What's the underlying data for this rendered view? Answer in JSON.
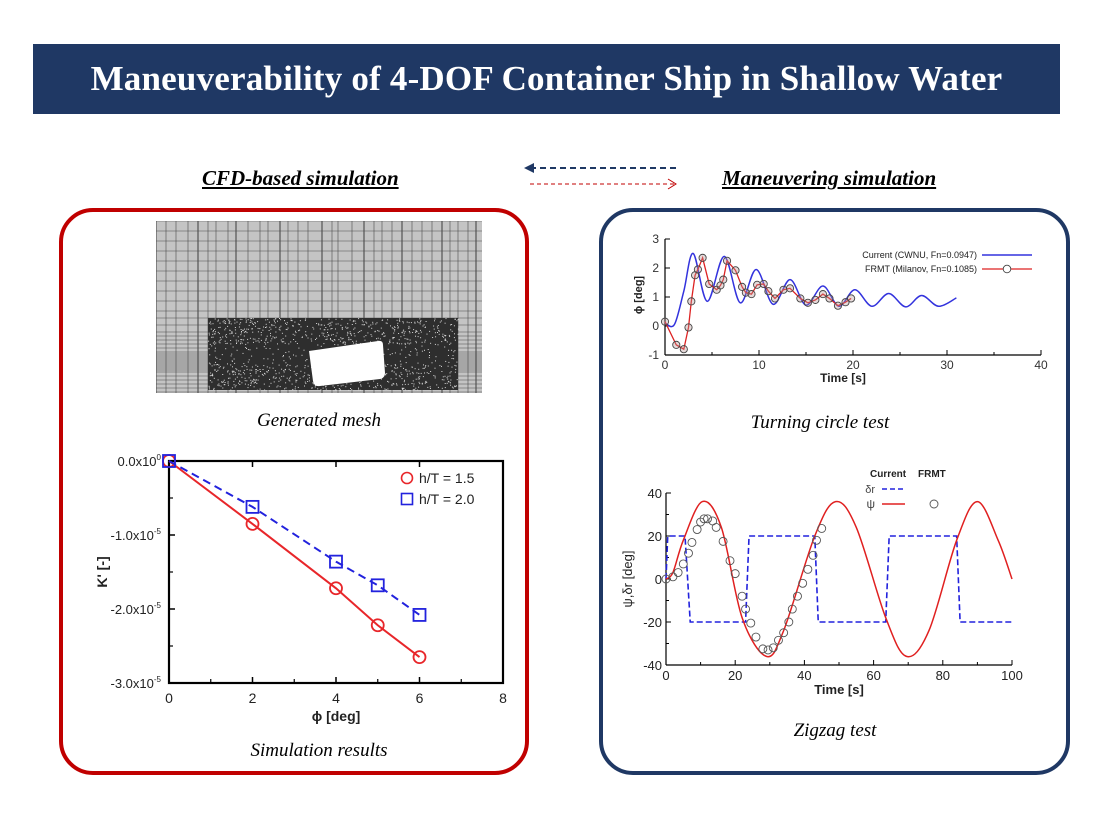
{
  "banner": {
    "title": "Maneuverability of 4-DOF Container Ship in Shallow Water",
    "color": "#1f3864"
  },
  "sections": {
    "left_heading": "CFD-based simulation",
    "right_heading": "Maneuvering simulation",
    "arrow_to_left_color": "#1f3864",
    "arrow_to_right_color": "#c00000"
  },
  "left_panel": {
    "border_color": "#c00000",
    "mesh_caption": "Generated mesh",
    "results_caption": "Simulation results"
  },
  "right_panel": {
    "border_color": "#1f3864",
    "turning_caption": "Turning circle test",
    "zigzag_caption": "Zigzag test"
  },
  "chart_data": [
    {
      "id": "simulation-results",
      "type": "line",
      "xlabel": "ϕ [deg]",
      "ylabel": "K' [-]",
      "xlim": [
        0,
        8
      ],
      "ylim": [
        -3e-05,
        0
      ],
      "xticks": [
        "0",
        "2",
        "4",
        "6",
        "8"
      ],
      "yticks": [
        {
          "value": 0,
          "label": "0.0x10",
          "exp": "0"
        },
        {
          "value": -1e-05,
          "label": "-1.0x10",
          "exp": "-5"
        },
        {
          "value": -2e-05,
          "label": "-2.0x10",
          "exp": "-5"
        },
        {
          "value": -3e-05,
          "label": "-3.0x10",
          "exp": "-5"
        }
      ],
      "legend_position": "top-right",
      "series": [
        {
          "name": "h/T = 1.5",
          "color": "#e8262a",
          "marker": "circle",
          "dash": false,
          "x": [
            0,
            2,
            4,
            5,
            6
          ],
          "y": [
            0,
            -8.5e-06,
            -1.72e-05,
            -2.22e-05,
            -2.65e-05
          ]
        },
        {
          "name": "h/T = 2.0",
          "color": "#2222dd",
          "marker": "square",
          "dash": true,
          "x": [
            0,
            2,
            4,
            5,
            6
          ],
          "y": [
            0,
            -6.2e-06,
            -1.36e-05,
            -1.68e-05,
            -2.08e-05
          ]
        }
      ]
    },
    {
      "id": "turning-circle",
      "type": "line",
      "xlabel": "Time [s]",
      "ylabel": "ϕ [deg]",
      "xlim": [
        0,
        40
      ],
      "ylim": [
        -1,
        3
      ],
      "xticks": [
        "0",
        "10",
        "20",
        "30",
        "40"
      ],
      "yticks": [
        "-1",
        "0",
        "1",
        "2",
        "3"
      ],
      "legend_position": "top-right",
      "series": [
        {
          "name": "Current (CWNU, Fn=0.0947)",
          "color": "#3333dd",
          "marker": "none",
          "x": [
            0,
            1,
            2,
            3,
            4.5,
            6.3,
            8,
            9.7,
            11.5,
            13.3,
            15,
            16.8,
            18.5,
            20.2,
            22,
            23.8,
            25.6,
            27.3,
            29.1,
            31
          ],
          "y": [
            0.1,
            0.05,
            1.2,
            2.5,
            0.85,
            2.4,
            0.8,
            1.95,
            0.75,
            1.6,
            0.72,
            1.38,
            0.68,
            1.25,
            0.68,
            1.12,
            0.66,
            1.05,
            0.68,
            0.97
          ]
        },
        {
          "name": "FRMT (Milanov, Fn=0.1085)",
          "color": "#dd2222",
          "marker": "circle",
          "x": [
            0,
            1.2,
            2,
            2.5,
            2.8,
            3.2,
            3.5,
            4,
            4.7,
            5.5,
            5.9,
            6.2,
            6.6,
            7.5,
            8.2,
            8.6,
            9.2,
            9.8,
            10.5,
            11,
            11.7,
            12.6,
            13.3,
            14.4,
            15.2,
            16,
            16.8,
            17.5,
            18.4,
            19.2,
            19.8
          ],
          "y": [
            0.15,
            -0.65,
            -0.8,
            -0.05,
            0.85,
            1.75,
            1.95,
            2.35,
            1.45,
            1.25,
            1.4,
            1.6,
            2.25,
            1.92,
            1.35,
            1.15,
            1.1,
            1.42,
            1.45,
            1.2,
            0.95,
            1.25,
            1.3,
            0.95,
            0.8,
            0.9,
            1.1,
            0.95,
            0.7,
            0.82,
            0.95
          ]
        }
      ]
    },
    {
      "id": "zigzag",
      "type": "line",
      "xlabel": "Time [s]",
      "ylabel": "ψ,δr [deg]",
      "xlim": [
        0,
        100
      ],
      "ylim": [
        -40,
        40
      ],
      "xticks": [
        "0",
        "20",
        "40",
        "60",
        "80",
        "100"
      ],
      "yticks": [
        "-40",
        "-20",
        "0",
        "20",
        "40"
      ],
      "legend_header": [
        "Current",
        "FRMT"
      ],
      "legend_position": "top-right",
      "series": [
        {
          "name": "δr",
          "color": "#2222dd",
          "dash": true,
          "marker": "none",
          "x": [
            0,
            0.5,
            5.5,
            7,
            23,
            24,
            43,
            44,
            63.5,
            64.5,
            84,
            85,
            100
          ],
          "y": [
            0,
            20,
            20,
            -20,
            -20,
            20,
            20,
            -20,
            -20,
            20,
            20,
            -20,
            -20
          ]
        },
        {
          "name": "ψ",
          "color": "#e02020",
          "marker": "none",
          "x": [
            0,
            2,
            5,
            10.5,
            16,
            22,
            29,
            34,
            43,
            49,
            55,
            63.5,
            69.5,
            76,
            84,
            90,
            96,
            100
          ],
          "y": [
            0,
            3,
            18,
            36,
            24,
            -18,
            -36,
            -24,
            20,
            36,
            24,
            -18,
            -36,
            -24,
            18,
            36,
            18,
            0
          ]
        },
        {
          "name": "FRMT ψ",
          "color": "#555555",
          "marker": "circle",
          "x": [
            0,
            2,
            3.5,
            5,
            6.5,
            7.5,
            9,
            10,
            11,
            12,
            13.5,
            14.5,
            16.5,
            18.5,
            20,
            22,
            23,
            24.5,
            26,
            28,
            29.5,
            31,
            32.5,
            34,
            35.5,
            36.5,
            38,
            39.5,
            41,
            42.5,
            43.5,
            45
          ],
          "y": [
            0,
            1,
            3,
            7,
            12,
            17,
            23,
            26.5,
            28,
            28,
            27,
            24,
            17.5,
            8.5,
            2.5,
            -8,
            -14,
            -20.5,
            -27,
            -32.5,
            -33,
            -32,
            -28.5,
            -25,
            -20,
            -14,
            -8,
            -2,
            4.5,
            11,
            18,
            23.5
          ]
        }
      ]
    }
  ]
}
